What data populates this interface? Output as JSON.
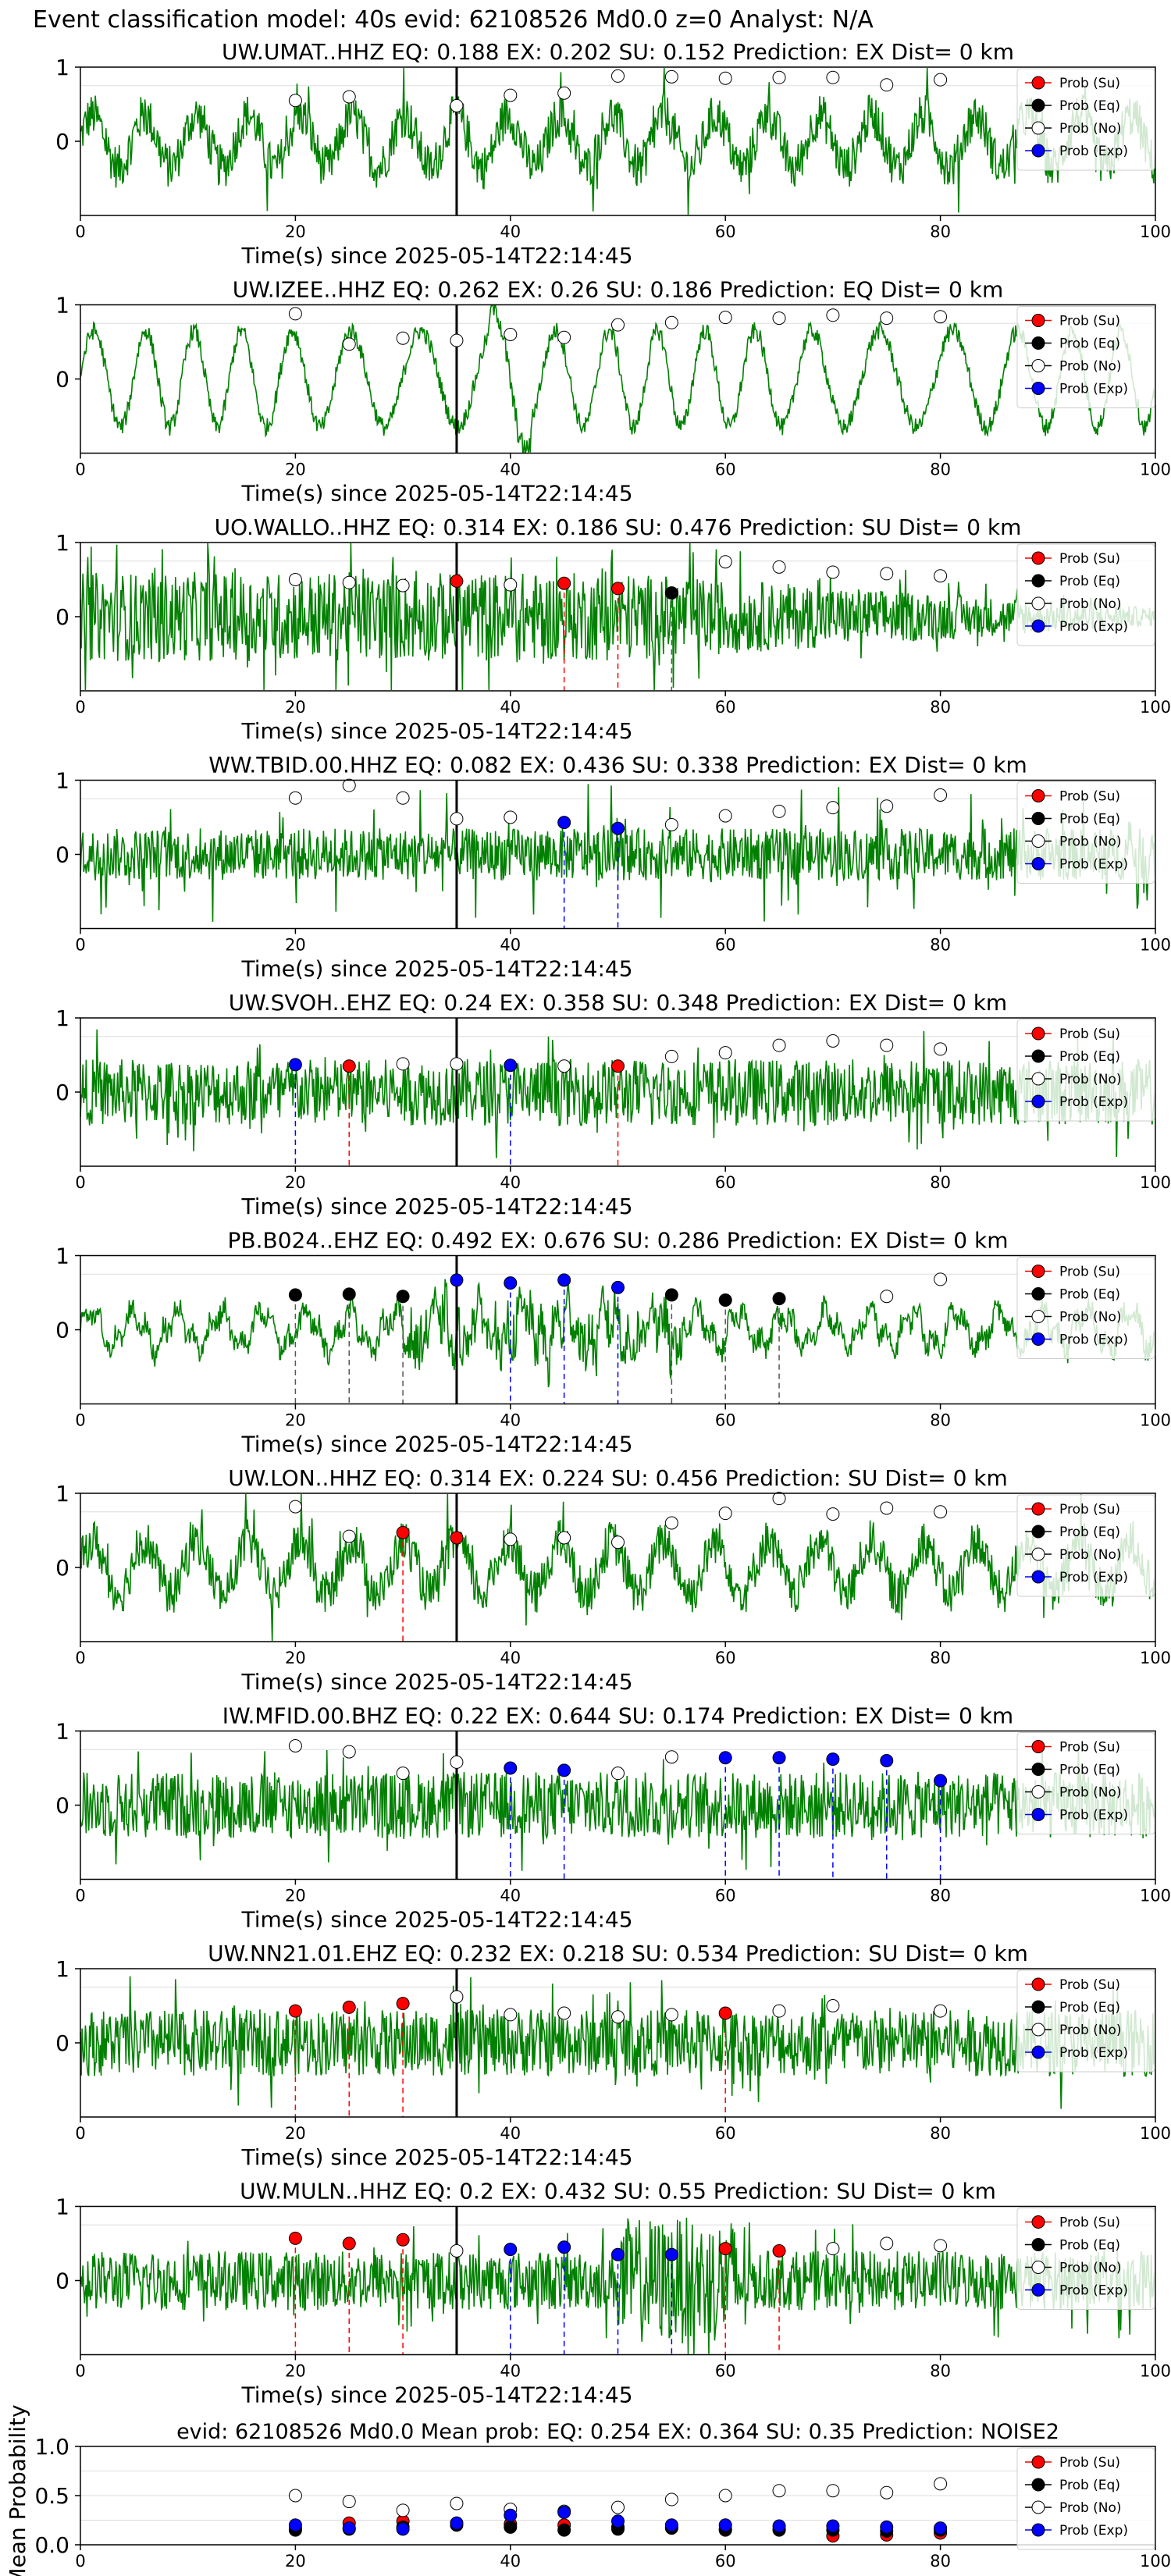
{
  "suptitle": "Event classification model: 40s evid: 62108526 Md0.0 z=0 Analyst: N/A",
  "legend_labels": [
    "Prob (Su)",
    "Prob (Eq)",
    "Prob (No)",
    "Prob (Exp)"
  ],
  "colors": {
    "waveform": "#008000",
    "su": "#ff0000",
    "eq": "#000000",
    "no": "#ffffff",
    "exp": "#0000ff",
    "grid": "#dddddd"
  },
  "chart_data": [
    {
      "type": "line",
      "station": "UW.UMAT..HHZ",
      "title": "UW.UMAT..HHZ   EQ: 0.188  EX: 0.202  SU: 0.152   Prediction: EX    Dist= 0 km",
      "xlabel": "Time(s) since 2025-05-14T22:14:45",
      "xlim": [
        0,
        100
      ],
      "ylim": [
        -1,
        1
      ],
      "xticks": [
        0,
        20,
        40,
        60,
        80,
        100
      ],
      "yticks": [
        0,
        1
      ],
      "pick_time": 35,
      "waveform_style": "mixed",
      "points": [
        [
          "No",
          20,
          0.55
        ],
        [
          "No",
          25,
          0.6
        ],
        [
          "No",
          35,
          0.48
        ],
        [
          "No",
          40,
          0.62
        ],
        [
          "No",
          45,
          0.65
        ],
        [
          "No",
          50,
          0.88
        ],
        [
          "No",
          55,
          0.87
        ],
        [
          "No",
          60,
          0.85
        ],
        [
          "No",
          65,
          0.86
        ],
        [
          "No",
          70,
          0.86
        ],
        [
          "No",
          75,
          0.76
        ],
        [
          "No",
          80,
          0.83
        ]
      ]
    },
    {
      "type": "line",
      "station": "UW.IZEE..HHZ",
      "title": "UW.IZEE..HHZ   EQ: 0.262  EX: 0.26  SU: 0.186   Prediction: EQ    Dist= 0 km",
      "xlabel": "Time(s) since 2025-05-14T22:14:45",
      "xlim": [
        0,
        100
      ],
      "ylim": [
        -1,
        1
      ],
      "xticks": [
        0,
        20,
        40,
        60,
        80,
        100
      ],
      "yticks": [
        0,
        1
      ],
      "pick_time": 35,
      "waveform_style": "wave",
      "points": [
        [
          "No",
          20,
          0.88
        ],
        [
          "No",
          25,
          0.47
        ],
        [
          "No",
          30,
          0.55
        ],
        [
          "No",
          35,
          0.52
        ],
        [
          "No",
          40,
          0.6
        ],
        [
          "No",
          45,
          0.56
        ],
        [
          "No",
          50,
          0.73
        ],
        [
          "No",
          55,
          0.76
        ],
        [
          "No",
          60,
          0.83
        ],
        [
          "No",
          65,
          0.82
        ],
        [
          "No",
          70,
          0.86
        ],
        [
          "No",
          75,
          0.82
        ],
        [
          "No",
          80,
          0.84
        ]
      ]
    },
    {
      "type": "line",
      "station": "UO.WALLO..HHZ",
      "title": "UO.WALLO..HHZ   EQ: 0.314  EX: 0.186  SU: 0.476   Prediction: SU    Dist= 0 km",
      "xlabel": "Time(s) since 2025-05-14T22:14:45",
      "xlim": [
        0,
        100
      ],
      "ylim": [
        -1,
        1
      ],
      "xticks": [
        0,
        20,
        40,
        60,
        80,
        100
      ],
      "yticks": [
        0,
        1
      ],
      "pick_time": 35,
      "waveform_style": "noise_decay",
      "points": [
        [
          "No",
          20,
          0.5
        ],
        [
          "No",
          25,
          0.46
        ],
        [
          "No",
          30,
          0.42
        ],
        [
          "Su",
          35,
          0.48
        ],
        [
          "No",
          40,
          0.43
        ],
        [
          "Su",
          45,
          0.45
        ],
        [
          "Su",
          50,
          0.38
        ],
        [
          "Eq",
          55,
          0.32
        ],
        [
          "No",
          60,
          0.74
        ],
        [
          "No",
          65,
          0.67
        ],
        [
          "No",
          70,
          0.6
        ],
        [
          "No",
          75,
          0.58
        ],
        [
          "No",
          80,
          0.55
        ]
      ]
    },
    {
      "type": "line",
      "station": "WW.TBID.00.HHZ",
      "title": "WW.TBID.00.HHZ   EQ: 0.082  EX: 0.436  SU: 0.338   Prediction: EX    Dist= 0 km",
      "xlabel": "Time(s) since 2025-05-14T22:14:45",
      "xlim": [
        0,
        100
      ],
      "ylim": [
        -1,
        1
      ],
      "xticks": [
        0,
        20,
        40,
        60,
        80,
        100
      ],
      "yticks": [
        0,
        1
      ],
      "pick_time": 35,
      "waveform_style": "spiky",
      "points": [
        [
          "No",
          20,
          0.76
        ],
        [
          "No",
          25,
          0.93
        ],
        [
          "No",
          30,
          0.76
        ],
        [
          "No",
          35,
          0.48
        ],
        [
          "No",
          40,
          0.5
        ],
        [
          "Exp",
          45,
          0.43
        ],
        [
          "Exp",
          50,
          0.35
        ],
        [
          "No",
          55,
          0.4
        ],
        [
          "No",
          60,
          0.52
        ],
        [
          "No",
          65,
          0.58
        ],
        [
          "No",
          70,
          0.63
        ],
        [
          "No",
          75,
          0.65
        ],
        [
          "No",
          80,
          0.8
        ]
      ]
    },
    {
      "type": "line",
      "station": "UW.SVOH..EHZ",
      "title": "UW.SVOH..EHZ   EQ: 0.24  EX: 0.358  SU: 0.348   Prediction: EX    Dist= 0 km",
      "xlabel": "Time(s) since 2025-05-14T22:14:45",
      "xlim": [
        0,
        100
      ],
      "ylim": [
        -1,
        1
      ],
      "xticks": [
        0,
        20,
        40,
        60,
        80,
        100
      ],
      "yticks": [
        0,
        1
      ],
      "pick_time": 35,
      "waveform_style": "noise",
      "points": [
        [
          "Exp",
          20,
          0.37
        ],
        [
          "Su",
          25,
          0.35
        ],
        [
          "No",
          30,
          0.38
        ],
        [
          "No",
          35,
          0.38
        ],
        [
          "Exp",
          40,
          0.36
        ],
        [
          "No",
          45,
          0.35
        ],
        [
          "Su",
          50,
          0.35
        ],
        [
          "No",
          55,
          0.48
        ],
        [
          "No",
          60,
          0.53
        ],
        [
          "No",
          65,
          0.63
        ],
        [
          "No",
          70,
          0.69
        ],
        [
          "No",
          75,
          0.63
        ],
        [
          "No",
          80,
          0.58
        ]
      ]
    },
    {
      "type": "line",
      "station": "PB.B024..EHZ",
      "title": "PB.B024..EHZ   EQ: 0.492  EX: 0.676  SU: 0.286   Prediction: EX    Dist= 0 km",
      "xlabel": "Time(s) since 2025-05-14T22:14:45",
      "xlim": [
        0,
        100
      ],
      "ylim": [
        -1,
        1
      ],
      "xticks": [
        0,
        20,
        40,
        60,
        80,
        100
      ],
      "yticks": [
        0,
        1
      ],
      "pick_time": 35,
      "waveform_style": "wave_small",
      "points": [
        [
          "Eq",
          20,
          0.47
        ],
        [
          "Eq",
          25,
          0.48
        ],
        [
          "Eq",
          30,
          0.45
        ],
        [
          "Exp",
          35,
          0.67
        ],
        [
          "Exp",
          40,
          0.63
        ],
        [
          "Exp",
          45,
          0.67
        ],
        [
          "Exp",
          50,
          0.57
        ],
        [
          "Eq",
          55,
          0.47
        ],
        [
          "Eq",
          60,
          0.4
        ],
        [
          "Eq",
          65,
          0.42
        ],
        [
          "No",
          75,
          0.45
        ],
        [
          "No",
          80,
          0.68
        ]
      ]
    },
    {
      "type": "line",
      "station": "UW.LON..HHZ",
      "title": "UW.LON..HHZ   EQ: 0.314  EX: 0.224  SU: 0.456   Prediction: SU    Dist= 0 km",
      "xlabel": "Time(s) since 2025-05-14T22:14:45",
      "xlim": [
        0,
        100
      ],
      "ylim": [
        -1,
        1
      ],
      "xticks": [
        0,
        20,
        40,
        60,
        80,
        100
      ],
      "yticks": [
        0,
        1
      ],
      "pick_time": 35,
      "waveform_style": "mixed",
      "points": [
        [
          "No",
          20,
          0.82
        ],
        [
          "No",
          25,
          0.42
        ],
        [
          "Su",
          30,
          0.47
        ],
        [
          "Su",
          35,
          0.4
        ],
        [
          "No",
          40,
          0.38
        ],
        [
          "No",
          45,
          0.4
        ],
        [
          "No",
          50,
          0.34
        ],
        [
          "No",
          55,
          0.6
        ],
        [
          "No",
          60,
          0.73
        ],
        [
          "No",
          65,
          0.93
        ],
        [
          "No",
          70,
          0.72
        ],
        [
          "No",
          75,
          0.8
        ],
        [
          "No",
          80,
          0.75
        ]
      ]
    },
    {
      "type": "line",
      "station": "IW.MFID.00.BHZ",
      "title": "IW.MFID.00.BHZ   EQ: 0.22  EX: 0.644  SU: 0.174   Prediction: EX    Dist= 0 km",
      "xlabel": "Time(s) since 2025-05-14T22:14:45",
      "xlim": [
        0,
        100
      ],
      "ylim": [
        -1,
        1
      ],
      "xticks": [
        0,
        20,
        40,
        60,
        80,
        100
      ],
      "yticks": [
        0,
        1
      ],
      "pick_time": 35,
      "waveform_style": "noise",
      "points": [
        [
          "No",
          20,
          0.8
        ],
        [
          "No",
          25,
          0.72
        ],
        [
          "No",
          30,
          0.43
        ],
        [
          "No",
          35,
          0.58
        ],
        [
          "Exp",
          40,
          0.5
        ],
        [
          "Exp",
          45,
          0.47
        ],
        [
          "No",
          50,
          0.43
        ],
        [
          "No",
          55,
          0.65
        ],
        [
          "Exp",
          60,
          0.64
        ],
        [
          "Exp",
          65,
          0.64
        ],
        [
          "Exp",
          70,
          0.62
        ],
        [
          "Exp",
          75,
          0.6
        ],
        [
          "Exp",
          80,
          0.33
        ]
      ]
    },
    {
      "type": "line",
      "station": "UW.NN21.01.EHZ",
      "title": "UW.NN21.01.EHZ   EQ: 0.232  EX: 0.218  SU: 0.534   Prediction: SU    Dist= 0 km",
      "xlabel": "Time(s) since 2025-05-14T22:14:45",
      "xlim": [
        0,
        100
      ],
      "ylim": [
        -1,
        1
      ],
      "xticks": [
        0,
        20,
        40,
        60,
        80,
        100
      ],
      "yticks": [
        0,
        1
      ],
      "pick_time": 35,
      "waveform_style": "noise",
      "points": [
        [
          "Su",
          20,
          0.43
        ],
        [
          "Su",
          25,
          0.48
        ],
        [
          "Su",
          30,
          0.53
        ],
        [
          "No",
          35,
          0.62
        ],
        [
          "No",
          40,
          0.38
        ],
        [
          "No",
          45,
          0.4
        ],
        [
          "No",
          50,
          0.35
        ],
        [
          "No",
          55,
          0.38
        ],
        [
          "Su",
          60,
          0.4
        ],
        [
          "No",
          65,
          0.43
        ],
        [
          "No",
          70,
          0.5
        ],
        [
          "No",
          80,
          0.43
        ]
      ]
    },
    {
      "type": "line",
      "station": "UW.MULN..HHZ",
      "title": "UW.MULN..HHZ   EQ: 0.2  EX: 0.432  SU: 0.55   Prediction: SU    Dist= 0 km",
      "xlabel": "Time(s) since 2025-05-14T22:14:45",
      "xlim": [
        0,
        100
      ],
      "ylim": [
        -1,
        1
      ],
      "xticks": [
        0,
        20,
        40,
        60,
        80,
        100
      ],
      "yticks": [
        0,
        1
      ],
      "pick_time": 35,
      "waveform_style": "noise_mid",
      "points": [
        [
          "Su",
          20,
          0.57
        ],
        [
          "Su",
          25,
          0.5
        ],
        [
          "Su",
          30,
          0.55
        ],
        [
          "No",
          35,
          0.4
        ],
        [
          "Exp",
          40,
          0.42
        ],
        [
          "Exp",
          45,
          0.45
        ],
        [
          "Exp",
          50,
          0.35
        ],
        [
          "Exp",
          55,
          0.35
        ],
        [
          "Su",
          60,
          0.43
        ],
        [
          "Su",
          65,
          0.4
        ],
        [
          "No",
          70,
          0.43
        ],
        [
          "No",
          75,
          0.5
        ],
        [
          "No",
          80,
          0.47
        ]
      ]
    },
    {
      "type": "scatter",
      "title": "evid: 62108526  Md0.0   Mean prob:   EQ: 0.254  EX: 0.364  SU: 0.35   Prediction: NOISE2",
      "ylabel": "Mean Probability",
      "xlim": [
        0,
        100
      ],
      "ylim": [
        0,
        1
      ],
      "xticks": [
        0,
        20,
        40,
        60,
        80,
        100
      ],
      "yticks": [
        0,
        0.5,
        1
      ],
      "ytick_labels": [
        "0.0",
        "0.5",
        "1.0"
      ],
      "series": [
        {
          "name": "Prob (Su)",
          "cls": "Su",
          "x": [
            20,
            25,
            30,
            35,
            40,
            45,
            50,
            55,
            60,
            65,
            70,
            75,
            80
          ],
          "y": [
            0.17,
            0.22,
            0.24,
            0.22,
            0.21,
            0.2,
            0.18,
            0.18,
            0.15,
            0.16,
            0.09,
            0.1,
            0.12
          ]
        },
        {
          "name": "Prob (Eq)",
          "cls": "Eq",
          "x": [
            20,
            25,
            30,
            35,
            40,
            45,
            50,
            55,
            60,
            65,
            70,
            75,
            80
          ],
          "y": [
            0.15,
            0.16,
            0.18,
            0.2,
            0.18,
            0.15,
            0.16,
            0.17,
            0.16,
            0.15,
            0.15,
            0.14,
            0.15
          ]
        },
        {
          "name": "Prob (No)",
          "cls": "No",
          "x": [
            20,
            25,
            30,
            35,
            40,
            45,
            50,
            55,
            60,
            65,
            70,
            75,
            80
          ],
          "y": [
            0.5,
            0.44,
            0.35,
            0.42,
            0.36,
            0.34,
            0.38,
            0.46,
            0.5,
            0.55,
            0.55,
            0.53,
            0.62
          ]
        },
        {
          "name": "Prob (Exp)",
          "cls": "Exp",
          "x": [
            20,
            25,
            30,
            35,
            40,
            45,
            50,
            55,
            60,
            65,
            70,
            75,
            80
          ],
          "y": [
            0.2,
            0.17,
            0.16,
            0.22,
            0.3,
            0.33,
            0.24,
            0.2,
            0.2,
            0.19,
            0.19,
            0.18,
            0.17
          ]
        }
      ]
    }
  ]
}
